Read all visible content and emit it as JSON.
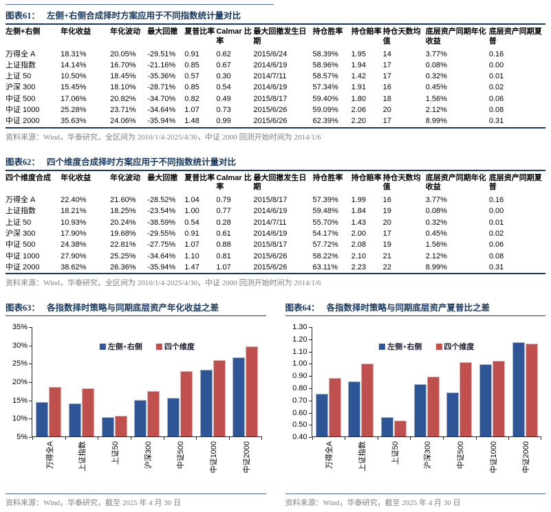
{
  "colors": {
    "navy_title": "#17375e",
    "rule_navy": "#4a6899",
    "bar_blue": "#2e5596",
    "bar_red": "#c0504d",
    "source_gray": "#7f7f7f"
  },
  "fig61": {
    "label": "图表61：",
    "title": "左侧+右侧合成择时方案应用于不同指数统计量对比",
    "columns": [
      "左侧+右侧",
      "年化收益",
      "年化波动",
      "最大回撤",
      "夏普比率",
      "Calmar 比率",
      "最大回撤发生日期",
      "持仓胜率",
      "持仓赔率",
      "持仓天数均值",
      "底层资产同期年化收益",
      "底层资产同期夏普"
    ],
    "rows": [
      [
        "万得全 A",
        "18.31%",
        "20.05%",
        "-29.51%",
        "0.91",
        "0.62",
        "2015/6/24",
        "58.39%",
        "1.95",
        "14",
        "3.77%",
        "0.16"
      ],
      [
        "上证指数",
        "14.14%",
        "16.70%",
        "-21.16%",
        "0.85",
        "0.67",
        "2014/6/19",
        "58.96%",
        "1.94",
        "17",
        "0.08%",
        "0.00"
      ],
      [
        "上证 50",
        "10.50%",
        "18.45%",
        "-35.36%",
        "0.57",
        "0.30",
        "2014/7/11",
        "58.57%",
        "1.42",
        "17",
        "0.32%",
        "0.01"
      ],
      [
        "沪深 300",
        "15.45%",
        "18.10%",
        "-28.71%",
        "0.85",
        "0.54",
        "2014/6/19",
        "57.34%",
        "1.91",
        "16",
        "0.45%",
        "0.02"
      ],
      [
        "中证 500",
        "17.06%",
        "20.82%",
        "-34.70%",
        "0.82",
        "0.49",
        "2015/8/17",
        "59.40%",
        "1.80",
        "18",
        "1.56%",
        "0.06"
      ],
      [
        "中证 1000",
        "25.28%",
        "23.71%",
        "-34.64%",
        "1.07",
        "0.73",
        "2015/6/26",
        "59.09%",
        "2.06",
        "20",
        "2.12%",
        "0.08"
      ],
      [
        "中证 2000",
        "35.63%",
        "24.06%",
        "-35.94%",
        "1.48",
        "0.99",
        "2015/6/26",
        "62.39%",
        "2.20",
        "17",
        "8.99%",
        "0.31"
      ]
    ],
    "source": "资料来源：Wind，华泰研究，全区间为 2010/1/4-2025/4/30，中证 2000 回测开始时间为 2014/1/6"
  },
  "fig62": {
    "label": "图表62：",
    "title": "四个维度合成择时方案应用于不同指数统计量对比",
    "columns": [
      "四个维度合成",
      "年化收益",
      "年化波动",
      "最大回撤",
      "夏普比率",
      "Calmar 比率",
      "最大回撤发生日期",
      "持仓胜率",
      "持仓赔率",
      "持仓天数均值",
      "底层资产同期年化收益",
      "底层资产同期夏普"
    ],
    "rows": [
      [
        "万得全 A",
        "22.40%",
        "21.60%",
        "-28.52%",
        "1.04",
        "0.79",
        "2015/8/17",
        "57.39%",
        "1.99",
        "16",
        "3.77%",
        "0.16"
      ],
      [
        "上证指数",
        "18.21%",
        "18.25%",
        "-23.54%",
        "1.00",
        "0.77",
        "2014/6/19",
        "59.48%",
        "1.84",
        "19",
        "0.08%",
        "0.00"
      ],
      [
        "上证 50",
        "10.93%",
        "20.24%",
        "-38.59%",
        "0.54",
        "0.28",
        "2014/7/11",
        "55.70%",
        "1.43",
        "20",
        "0.32%",
        "0.01"
      ],
      [
        "沪深 300",
        "17.90%",
        "19.68%",
        "-29.55%",
        "0.91",
        "0.61",
        "2014/6/19",
        "54.17%",
        "2.00",
        "17",
        "0.45%",
        "0.02"
      ],
      [
        "中证 500",
        "24.38%",
        "22.81%",
        "-27.75%",
        "1.07",
        "0.88",
        "2015/8/17",
        "57.72%",
        "2.08",
        "19",
        "1.56%",
        "0.06"
      ],
      [
        "中证 1000",
        "27.90%",
        "25.25%",
        "-34.64%",
        "1.10",
        "0.81",
        "2015/6/26",
        "58.22%",
        "2.10",
        "21",
        "2.12%",
        "0.08"
      ],
      [
        "中证 2000",
        "38.62%",
        "26.36%",
        "-35.94%",
        "1.47",
        "1.07",
        "2015/6/26",
        "63.11%",
        "2.23",
        "22",
        "8.99%",
        "0.31"
      ]
    ],
    "source": "资料来源：Wind，华泰研究，全区间为 2010/1/4-2025/4/30，中证 2000 回测开始时间为 2014/1/6"
  },
  "fig63": {
    "label": "图表63：",
    "title": "各指数择时策略与同期底层资产年化收益之差",
    "source": "资料来源：Wind，华泰研究，截至 2025 年 4 月 30 日"
  },
  "fig64": {
    "label": "图表64：",
    "title": "各指数择时策略与同期底层资产夏普比之差",
    "source": "资料来源：Wind，华泰研究，截至 2025 年 4 月 30 日"
  },
  "chart_data": [
    {
      "type": "bar",
      "title": "各指数择时策略与同期底层资产年化收益之差",
      "categories": [
        "万得全A",
        "上证指数",
        "上证50",
        "沪深300",
        "中证500",
        "中证1000",
        "中证2000"
      ],
      "series": [
        {
          "name": "左侧+右侧",
          "color": "#2e5596",
          "values": [
            14.5,
            14.1,
            10.2,
            15.0,
            15.5,
            23.2,
            26.6
          ]
        },
        {
          "name": "四个维度",
          "color": "#c0504d",
          "values": [
            18.6,
            18.1,
            10.6,
            17.5,
            22.8,
            25.8,
            29.6
          ]
        }
      ],
      "ylim": [
        5,
        35
      ],
      "ytick_step": 5,
      "tick_format": "percent",
      "grid": false,
      "legend_position": "top-center"
    },
    {
      "type": "bar",
      "title": "各指数择时策略与同期底层资产夏普比之差",
      "categories": [
        "万得全A",
        "上证指数",
        "上证50",
        "沪深300",
        "中证500",
        "中证1000",
        "中证2000"
      ],
      "series": [
        {
          "name": "左侧+右侧",
          "color": "#2e5596",
          "values": [
            0.75,
            0.85,
            0.56,
            0.83,
            0.76,
            0.99,
            1.17
          ]
        },
        {
          "name": "四个维度",
          "color": "#c0504d",
          "values": [
            0.88,
            1.0,
            0.53,
            0.89,
            1.01,
            1.02,
            1.16
          ]
        }
      ],
      "ylim": [
        0.4,
        1.3
      ],
      "ytick_step": 0.1,
      "tick_format": "fixed2",
      "grid": false,
      "legend_position": "top-center"
    }
  ]
}
